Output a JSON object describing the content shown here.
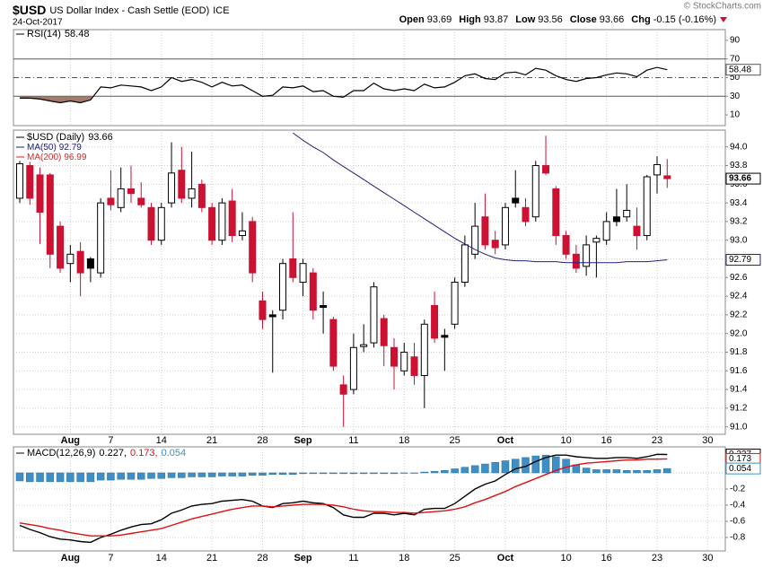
{
  "header": {
    "symbol": "$USD",
    "name": "US Dollar Index - Cash Settle (EOD)",
    "exchange": "ICE",
    "date": "24-Oct-2017",
    "open_label": "Open",
    "high_label": "High",
    "low_label": "Low",
    "close_label": "Close",
    "chg_label": "Chg",
    "chg": "-0.15 (-0.16%)",
    "credit": "© StockCharts.com"
  },
  "chart_data": [
    {
      "type": "line",
      "name": "RSI(14)",
      "color": "#000000",
      "fill_color": "#a07a6a",
      "fill_below": 30,
      "levels": [
        {
          "value": 70,
          "style": "solid"
        },
        {
          "value": 50,
          "style": "dashed"
        },
        {
          "value": 30,
          "style": "solid"
        }
      ],
      "ylim": [
        -1.5,
        101.5
      ],
      "yticks": [
        10,
        30,
        50,
        70,
        90
      ],
      "values": [
        28,
        28,
        27,
        25,
        23,
        25,
        23,
        26,
        40,
        39,
        42,
        41,
        40,
        36,
        40,
        50,
        46,
        48,
        45,
        40,
        45,
        41,
        42,
        36,
        30,
        31,
        40,
        39,
        41,
        35,
        36,
        30,
        29,
        36,
        36,
        44,
        38,
        36,
        38,
        36,
        43,
        39,
        40,
        45,
        52,
        54,
        49,
        48,
        55,
        56,
        53,
        60,
        58,
        52,
        48,
        46,
        49,
        50,
        53,
        55,
        54,
        51,
        58,
        61,
        58.48,
        null,
        null,
        null,
        null
      ]
    },
    {
      "type": "candlestick",
      "legend": "$USD (Daily)",
      "up_color": "#000000",
      "down_color": "#cc1133",
      "grid": true,
      "categories": [
        null,
        null,
        null,
        null,
        null,
        "Aug",
        null,
        null,
        null,
        "7",
        null,
        null,
        null,
        null,
        "14",
        null,
        null,
        null,
        null,
        "21",
        null,
        null,
        null,
        null,
        "28",
        null,
        null,
        null,
        "Sep",
        null,
        null,
        null,
        null,
        "11",
        null,
        null,
        null,
        null,
        "18",
        null,
        null,
        null,
        null,
        "25",
        null,
        null,
        null,
        null,
        "Oct",
        null,
        null,
        null,
        null,
        null,
        "10",
        null,
        null,
        null,
        "16",
        null,
        null,
        null,
        null,
        "23",
        null,
        null,
        null,
        null,
        "30"
      ],
      "open": [
        93.45,
        93.8,
        93.7,
        93.7,
        93.15,
        92.75,
        92.88,
        92.8,
        92.65,
        93.45,
        93.35,
        93.55,
        93.45,
        93.35,
        93.0,
        93.4,
        93.75,
        93.45,
        93.6,
        93.35,
        93.0,
        93.42,
        93.05,
        93.2,
        92.35,
        92.2,
        92.25,
        92.8,
        92.55,
        92.65,
        92.3,
        92.15,
        91.45,
        91.4,
        91.86,
        91.9,
        92.16,
        91.85,
        91.6,
        91.75,
        91.55,
        92.3,
        91.98,
        92.1,
        92.55,
        92.85,
        93.25,
        93.0,
        92.95,
        93.45,
        93.35,
        93.25,
        93.8,
        93.55,
        93.05,
        92.85,
        92.72,
        92.98,
        93.0,
        93.25,
        93.25,
        93.15,
        93.05,
        93.7,
        93.69,
        null,
        null,
        null,
        null
      ],
      "high": [
        93.85,
        93.84,
        93.78,
        93.72,
        93.2,
        92.95,
        92.98,
        92.82,
        93.45,
        93.75,
        93.78,
        93.8,
        93.62,
        93.4,
        93.4,
        94.05,
        94.0,
        93.95,
        93.65,
        93.4,
        93.45,
        93.55,
        93.3,
        93.25,
        92.45,
        92.25,
        92.8,
        93.3,
        92.8,
        92.7,
        92.45,
        92.18,
        91.55,
        92.0,
        92.1,
        92.55,
        92.2,
        91.95,
        91.9,
        91.9,
        92.15,
        92.45,
        92.05,
        92.6,
        93.05,
        93.4,
        93.5,
        93.1,
        93.4,
        93.75,
        93.45,
        93.85,
        94.12,
        93.58,
        93.1,
        92.95,
        93.05,
        93.05,
        93.3,
        93.55,
        93.6,
        93.35,
        93.7,
        93.9,
        93.87,
        null,
        null,
        null,
        null
      ],
      "low": [
        93.4,
        93.38,
        92.96,
        92.7,
        92.65,
        92.55,
        92.4,
        92.55,
        92.6,
        93.32,
        93.3,
        93.4,
        93.35,
        92.95,
        92.95,
        93.35,
        93.4,
        93.35,
        93.3,
        92.95,
        92.95,
        92.98,
        93.0,
        92.55,
        92.05,
        91.58,
        92.15,
        92.55,
        92.4,
        92.15,
        92.0,
        91.6,
        91.0,
        91.35,
        91.8,
        91.85,
        91.65,
        91.4,
        91.55,
        91.45,
        91.2,
        91.9,
        91.6,
        92.05,
        92.5,
        92.8,
        92.9,
        92.85,
        92.9,
        93.35,
        93.15,
        93.2,
        93.7,
        92.95,
        92.8,
        92.65,
        92.62,
        92.6,
        92.95,
        93.15,
        93.2,
        92.9,
        93.0,
        93.5,
        93.56,
        null,
        null,
        null,
        null
      ],
      "close": [
        93.82,
        93.45,
        93.3,
        92.85,
        92.7,
        92.85,
        92.65,
        92.7,
        93.4,
        93.38,
        93.55,
        93.5,
        93.38,
        93.0,
        93.35,
        93.72,
        93.45,
        93.55,
        93.35,
        93.0,
        93.4,
        93.05,
        93.1,
        92.65,
        92.15,
        92.18,
        92.75,
        92.6,
        92.75,
        92.25,
        92.28,
        91.65,
        91.35,
        91.85,
        91.88,
        92.5,
        91.87,
        91.65,
        91.8,
        91.55,
        92.1,
        91.95,
        91.96,
        92.55,
        92.95,
        93.15,
        92.95,
        92.92,
        93.35,
        93.4,
        93.2,
        93.8,
        93.72,
        93.05,
        92.85,
        92.7,
        92.95,
        93.02,
        93.2,
        93.2,
        93.32,
        93.05,
        93.68,
        93.81,
        93.66,
        null,
        null,
        null,
        null
      ],
      "ylim": [
        90.92,
        94.18
      ],
      "yticks": [
        {
          "value": 91,
          "label": "91.0"
        },
        91.2,
        91.4,
        91.6,
        91.8,
        {
          "value": 92,
          "label": "92.0"
        },
        92.2,
        92.4,
        92.6,
        92.8,
        {
          "value": 93,
          "label": "93.0"
        },
        93.2,
        93.4,
        93.6,
        93.8,
        {
          "value": 94,
          "label": "94.0"
        }
      ],
      "series": [
        {
          "name": "MA(50)",
          "color": "#20207a",
          "values": [
            null,
            null,
            null,
            null,
            null,
            null,
            null,
            null,
            null,
            null,
            null,
            null,
            null,
            null,
            null,
            null,
            null,
            null,
            null,
            null,
            null,
            null,
            null,
            null,
            null,
            null,
            null,
            94.15,
            94.07,
            94.0,
            93.94,
            93.86,
            93.79,
            93.72,
            93.65,
            93.58,
            93.51,
            93.44,
            93.37,
            93.3,
            93.23,
            93.16,
            93.09,
            93.02,
            92.96,
            92.9,
            92.85,
            92.81,
            92.79,
            92.78,
            92.78,
            92.77,
            92.77,
            92.77,
            92.76,
            92.76,
            92.76,
            92.76,
            92.76,
            92.76,
            92.77,
            92.77,
            92.77,
            92.78,
            92.79,
            null,
            null,
            null,
            null
          ]
        },
        {
          "name": "MA(200)",
          "color": "#dd2222",
          "value": 96.99
        }
      ]
    },
    {
      "type": "macd",
      "legend": "MACD(12,26,9)",
      "ylim": [
        -0.967,
        0.322
      ],
      "yticks": [
        -0.8,
        -0.6,
        -0.4,
        -0.2
      ],
      "series": [
        {
          "kind": "line",
          "color": "#000000",
          "legend_label": "0.227,",
          "values": [
            -0.65,
            -0.7,
            -0.74,
            -0.79,
            -0.82,
            -0.83,
            -0.85,
            -0.86,
            -0.8,
            -0.76,
            -0.71,
            -0.67,
            -0.64,
            -0.63,
            -0.58,
            -0.5,
            -0.46,
            -0.41,
            -0.39,
            -0.38,
            -0.35,
            -0.34,
            -0.33,
            -0.35,
            -0.41,
            -0.43,
            -0.38,
            -0.37,
            -0.35,
            -0.37,
            -0.38,
            -0.43,
            -0.52,
            -0.55,
            -0.55,
            -0.5,
            -0.5,
            -0.52,
            -0.5,
            -0.52,
            -0.45,
            -0.44,
            -0.44,
            -0.38,
            -0.29,
            -0.2,
            -0.14,
            -0.1,
            -0.02,
            0.05,
            0.08,
            0.14,
            0.19,
            0.22,
            0.22,
            0.2,
            0.19,
            0.18,
            0.18,
            0.19,
            0.19,
            0.18,
            0.2,
            0.23,
            0.227,
            null,
            null,
            null,
            null
          ]
        },
        {
          "kind": "line",
          "color": "#e01010",
          "legend_label": "0.173,",
          "values": [
            -0.62,
            -0.64,
            -0.66,
            -0.69,
            -0.71,
            -0.74,
            -0.76,
            -0.78,
            -0.78,
            -0.78,
            -0.77,
            -0.75,
            -0.73,
            -0.71,
            -0.69,
            -0.65,
            -0.61,
            -0.57,
            -0.54,
            -0.51,
            -0.48,
            -0.45,
            -0.43,
            -0.41,
            -0.41,
            -0.42,
            -0.41,
            -0.4,
            -0.39,
            -0.39,
            -0.39,
            -0.4,
            -0.42,
            -0.45,
            -0.47,
            -0.48,
            -0.48,
            -0.49,
            -0.49,
            -0.5,
            -0.49,
            -0.48,
            -0.47,
            -0.45,
            -0.42,
            -0.37,
            -0.33,
            -0.28,
            -0.23,
            -0.17,
            -0.12,
            -0.07,
            -0.02,
            0.03,
            0.07,
            0.1,
            0.12,
            0.13,
            0.14,
            0.15,
            0.16,
            0.16,
            0.17,
            0.17,
            0.173,
            null,
            null,
            null,
            null
          ]
        },
        {
          "kind": "histogram",
          "color": "#3d8fc5",
          "values": [
            -0.1,
            -0.11,
            -0.11,
            -0.11,
            -0.11,
            -0.11,
            -0.11,
            -0.11,
            -0.09,
            -0.09,
            -0.08,
            -0.08,
            -0.08,
            -0.07,
            -0.07,
            -0.06,
            -0.06,
            -0.05,
            -0.05,
            -0.05,
            -0.04,
            -0.04,
            -0.04,
            -0.03,
            -0.03,
            -0.02,
            -0.02,
            -0.02,
            -0.01,
            -0.01,
            -0.01,
            -0.01,
            -0.01,
            -0.01,
            -0.01,
            -0.01,
            -0.01,
            -0.01,
            0.0,
            0.0,
            0.01,
            0.02,
            0.03,
            0.05,
            0.07,
            0.09,
            0.11,
            0.13,
            0.15,
            0.17,
            0.19,
            0.21,
            0.22,
            0.2,
            0.17,
            0.1,
            0.06,
            0.04,
            0.04,
            0.04,
            0.03,
            0.03,
            0.03,
            0.04,
            0.054,
            null,
            null,
            null,
            null
          ]
        }
      ]
    }
  ]
}
